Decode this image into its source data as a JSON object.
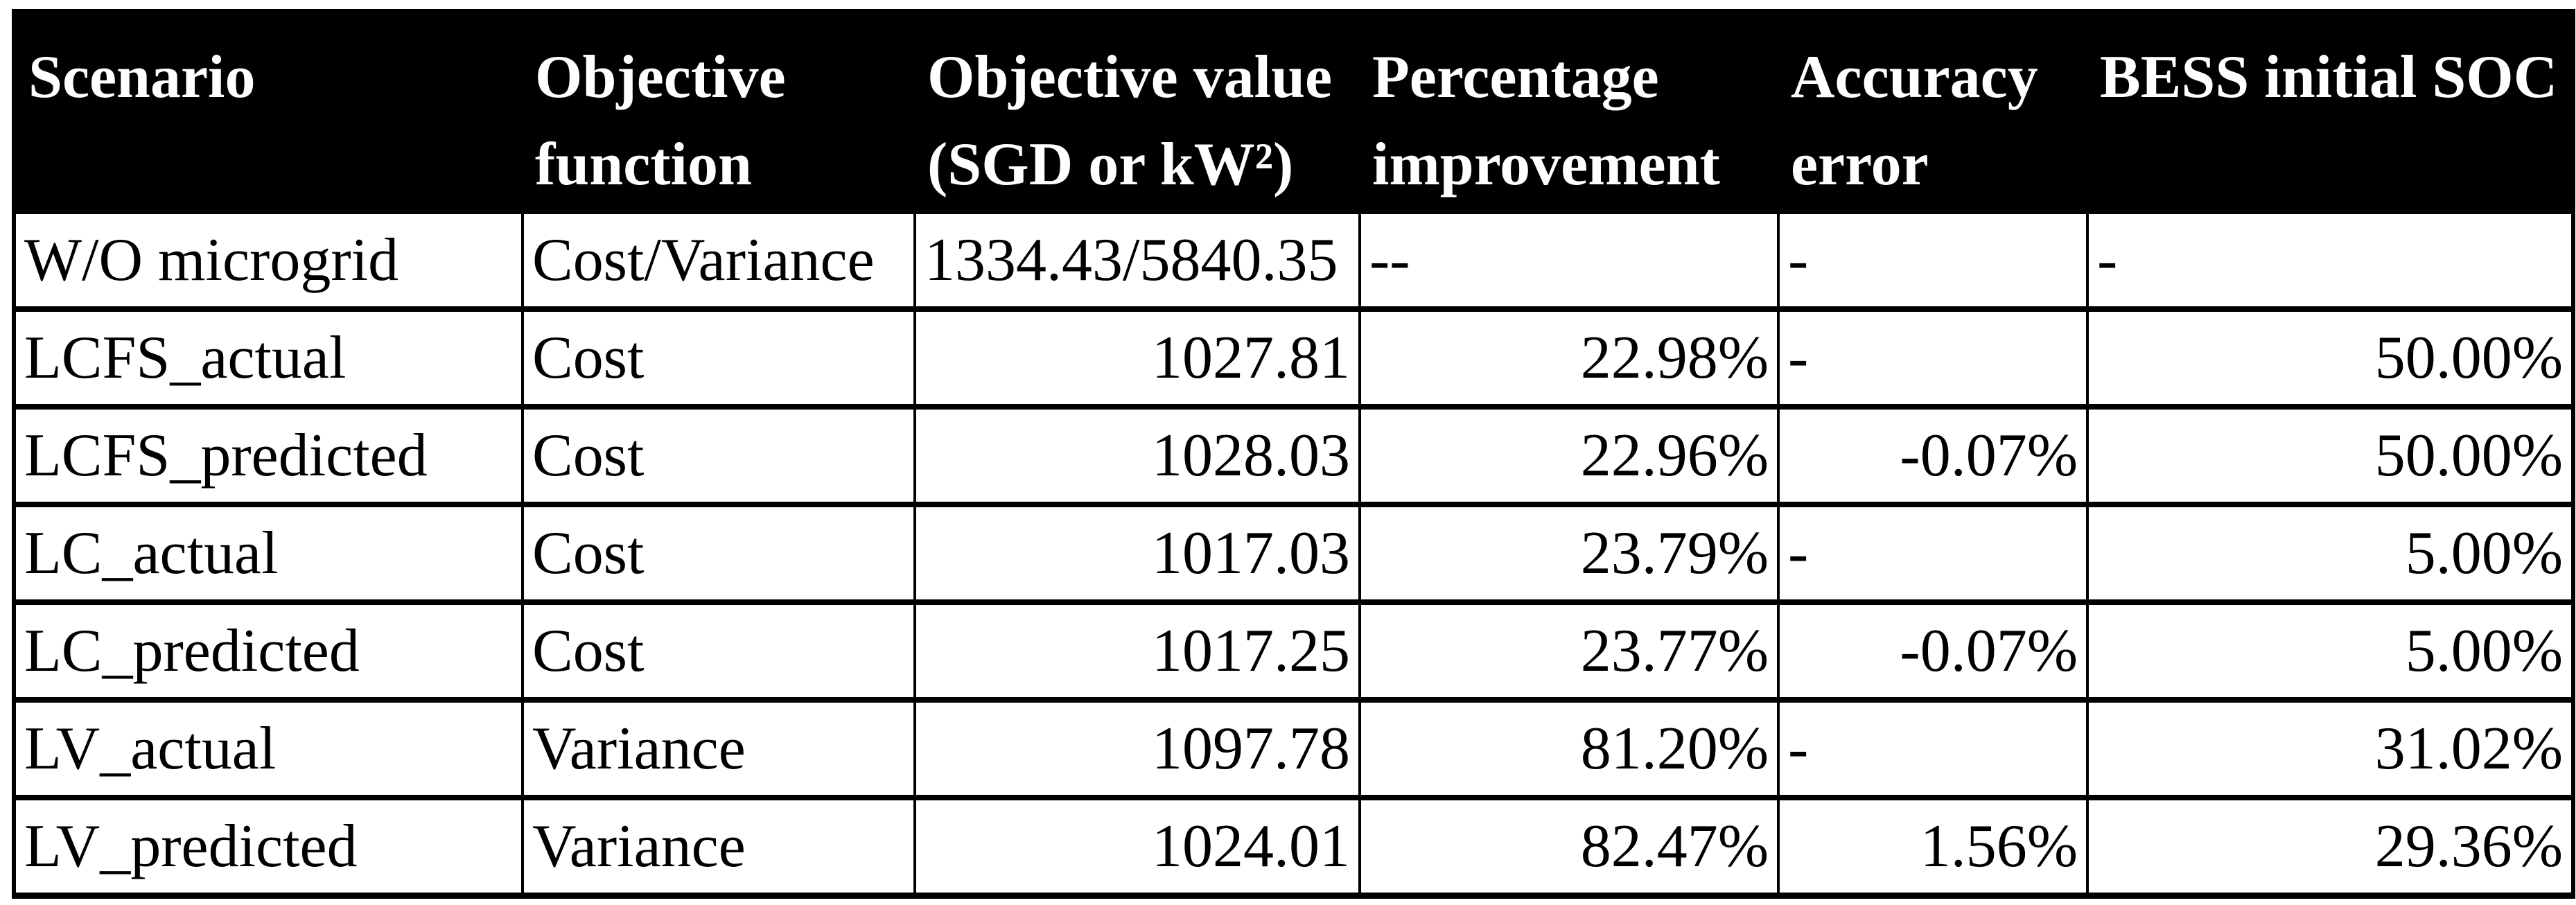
{
  "colors": {
    "header_bg": "#000000",
    "header_text": "#ffffff",
    "body_bg": "#ffffff",
    "body_text": "#000000",
    "border": "#000000"
  },
  "table": {
    "columns": [
      {
        "id": "scenario",
        "lines": [
          "Scenario"
        ]
      },
      {
        "id": "objective_function",
        "lines": [
          "Objective",
          "function"
        ]
      },
      {
        "id": "objective_value",
        "lines": [
          "Objective value",
          "(SGD or kW²)"
        ]
      },
      {
        "id": "percentage_improvement",
        "lines": [
          "Percentage",
          "improvement"
        ]
      },
      {
        "id": "accuracy_error",
        "lines": [
          "Accuracy",
          "error"
        ]
      },
      {
        "id": "bess_initial_soc",
        "lines": [
          "BESS initial SOC"
        ]
      }
    ],
    "rows": [
      {
        "cells": {
          "scenario": {
            "text": "W/O microgrid",
            "align": "left"
          },
          "objective_function": {
            "text": "Cost/Variance",
            "align": "left"
          },
          "objective_value": {
            "text": "1334.43/5840.35",
            "align": "left"
          },
          "percentage_improvement": {
            "text": "--",
            "align": "left"
          },
          "accuracy_error": {
            "text": "-",
            "align": "left"
          },
          "bess_initial_soc": {
            "text": "-",
            "align": "left"
          }
        }
      },
      {
        "cells": {
          "scenario": {
            "text": "LCFS_actual",
            "align": "left"
          },
          "objective_function": {
            "text": "Cost",
            "align": "left"
          },
          "objective_value": {
            "text": "1027.81",
            "align": "right"
          },
          "percentage_improvement": {
            "text": "22.98%",
            "align": "right"
          },
          "accuracy_error": {
            "text": "-",
            "align": "left"
          },
          "bess_initial_soc": {
            "text": "50.00%",
            "align": "right"
          }
        }
      },
      {
        "cells": {
          "scenario": {
            "text": "LCFS_predicted",
            "align": "left"
          },
          "objective_function": {
            "text": "Cost",
            "align": "left"
          },
          "objective_value": {
            "text": "1028.03",
            "align": "right"
          },
          "percentage_improvement": {
            "text": "22.96%",
            "align": "right"
          },
          "accuracy_error": {
            "text": "-0.07%",
            "align": "right"
          },
          "bess_initial_soc": {
            "text": "50.00%",
            "align": "right"
          }
        }
      },
      {
        "cells": {
          "scenario": {
            "text": "LC_actual",
            "align": "left"
          },
          "objective_function": {
            "text": "Cost",
            "align": "left"
          },
          "objective_value": {
            "text": "1017.03",
            "align": "right"
          },
          "percentage_improvement": {
            "text": "23.79%",
            "align": "right"
          },
          "accuracy_error": {
            "text": "-",
            "align": "left"
          },
          "bess_initial_soc": {
            "text": "5.00%",
            "align": "right"
          }
        }
      },
      {
        "cells": {
          "scenario": {
            "text": "LC_predicted",
            "align": "left"
          },
          "objective_function": {
            "text": "Cost",
            "align": "left"
          },
          "objective_value": {
            "text": "1017.25",
            "align": "right"
          },
          "percentage_improvement": {
            "text": "23.77%",
            "align": "right"
          },
          "accuracy_error": {
            "text": "-0.07%",
            "align": "right"
          },
          "bess_initial_soc": {
            "text": "5.00%",
            "align": "right"
          }
        }
      },
      {
        "cells": {
          "scenario": {
            "text": "LV_actual",
            "align": "left"
          },
          "objective_function": {
            "text": "Variance",
            "align": "left"
          },
          "objective_value": {
            "text": "1097.78",
            "align": "right"
          },
          "percentage_improvement": {
            "text": "81.20%",
            "align": "right"
          },
          "accuracy_error": {
            "text": "-",
            "align": "left"
          },
          "bess_initial_soc": {
            "text": "31.02%",
            "align": "right"
          }
        }
      },
      {
        "cells": {
          "scenario": {
            "text": "LV_predicted",
            "align": "left"
          },
          "objective_function": {
            "text": "Variance",
            "align": "left"
          },
          "objective_value": {
            "text": "1024.01",
            "align": "right"
          },
          "percentage_improvement": {
            "text": "82.47%",
            "align": "right"
          },
          "accuracy_error": {
            "text": "1.56%",
            "align": "right"
          },
          "bess_initial_soc": {
            "text": "29.36%",
            "align": "right"
          }
        }
      }
    ]
  }
}
